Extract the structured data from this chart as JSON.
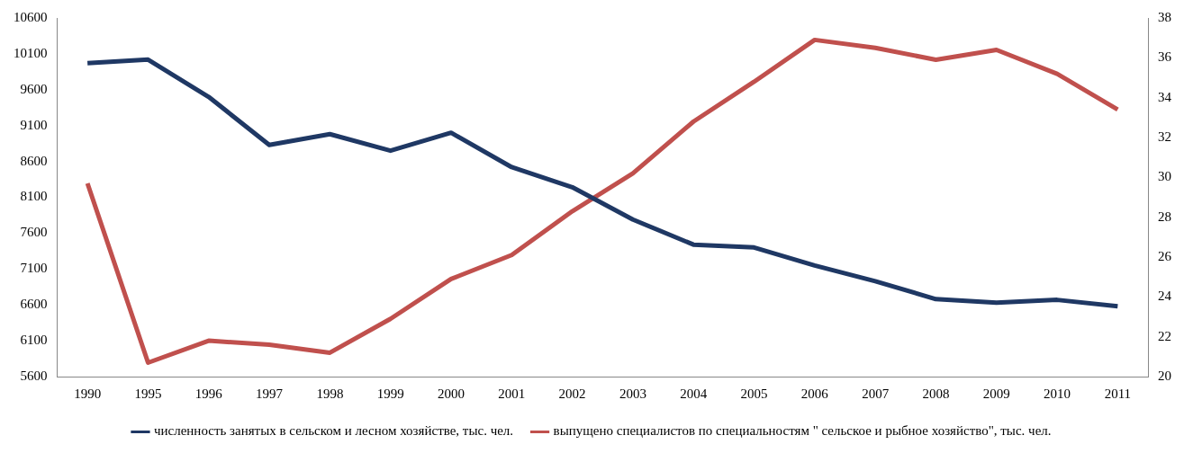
{
  "chart_data": {
    "type": "line",
    "categories": [
      "1990",
      "1995",
      "1996",
      "1997",
      "1998",
      "1999",
      "2000",
      "2001",
      "2002",
      "2003",
      "2004",
      "2005",
      "2006",
      "2007",
      "2008",
      "2009",
      "2010",
      "2011"
    ],
    "series": [
      {
        "name": "численность занятых в сельском и лесном хозяйстве, тыс. чел.",
        "color": "#1f3864",
        "values": [
          9970,
          10020,
          9500,
          8830,
          8980,
          8750,
          9000,
          8520,
          8240,
          7790,
          7440,
          7400,
          7150,
          6930,
          6680,
          6630,
          6670,
          6580
        ]
      },
      {
        "name": "выпущено специалистов по специальностям \" сельское и рыбное хозяйство\", тыс. чел.",
        "color": "#c0504d",
        "axis": "y2",
        "values": [
          29.7,
          20.7,
          21.8,
          21.6,
          21.2,
          22.9,
          24.9,
          26.1,
          28.3,
          30.2,
          32.8,
          34.8,
          36.9,
          36.5,
          35.9,
          36.4,
          35.2,
          33.4
        ]
      }
    ],
    "ylim": [
      5600,
      10600
    ],
    "yticks": [
      5600,
      6100,
      6600,
      7100,
      7600,
      8100,
      8600,
      9100,
      9600,
      10100,
      10600
    ],
    "y2lim": [
      20,
      38
    ],
    "y2ticks": [
      20,
      22,
      24,
      26,
      28,
      30,
      32,
      34,
      36,
      38
    ],
    "grid": false,
    "legend": "bottom",
    "marker": "none",
    "line_style": "solid"
  }
}
